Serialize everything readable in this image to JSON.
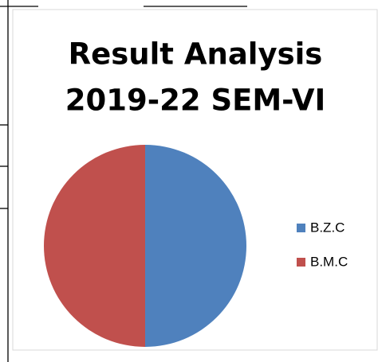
{
  "chart_data": {
    "type": "pie",
    "title": [
      "Result Analysis",
      "2019-22 SEM-VI"
    ],
    "categories": [
      "B.Z.C",
      "B.M.C"
    ],
    "values": [
      50,
      50
    ],
    "colors": [
      "#4f81bd",
      "#c0504d"
    ],
    "legend": "right"
  }
}
